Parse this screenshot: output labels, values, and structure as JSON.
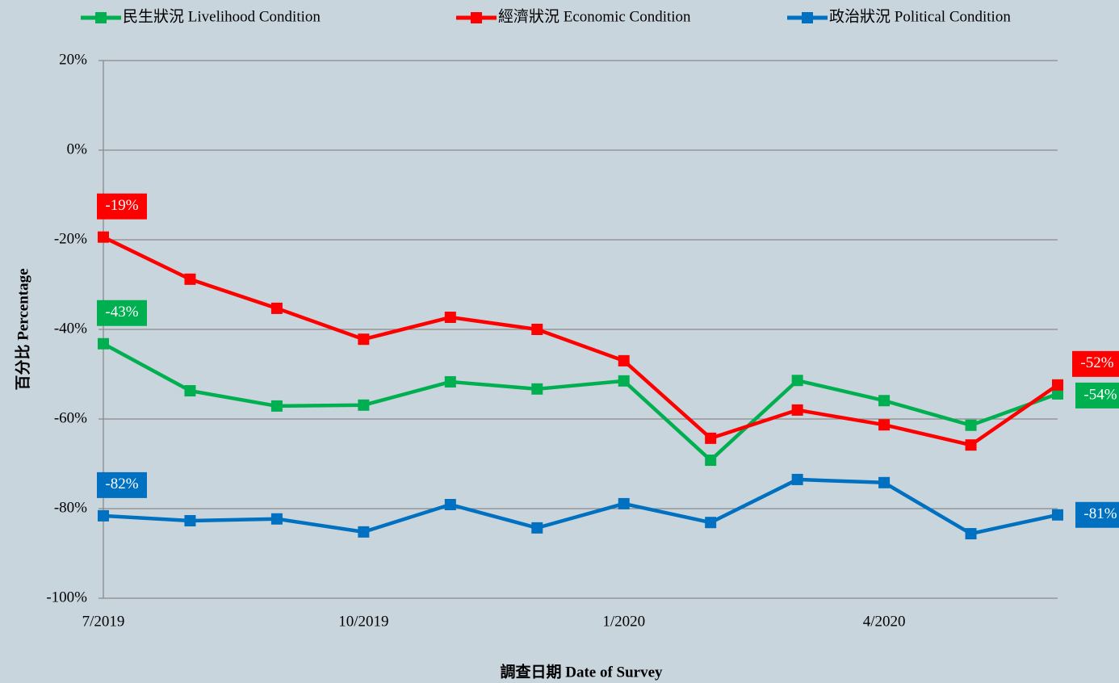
{
  "chart_data": {
    "type": "line",
    "x_label": "調查日期 Date of Survey",
    "y_label": "百分比 Percentage",
    "categories": [
      "7/2019",
      null,
      null,
      "10/2019",
      null,
      null,
      "1/2020",
      null,
      null,
      "4/2020",
      null,
      null
    ],
    "ylim": [
      -100,
      20
    ],
    "yticks": [
      {
        "value": -100,
        "label": "-100%"
      },
      {
        "value": -80,
        "label": "-80%"
      },
      {
        "value": -60,
        "label": "-60%"
      },
      {
        "value": -40,
        "label": "-40%"
      },
      {
        "value": -20,
        "label": "-20%"
      },
      {
        "value": 0,
        "label": "0%"
      },
      {
        "value": 20,
        "label": "20%"
      }
    ],
    "grid": true,
    "legend": "top",
    "series": [
      {
        "name": "民生狀況 Livelihood Condition",
        "color": "#00b050",
        "values": [
          -43.2,
          -53.7,
          -57.1,
          -56.9,
          -51.7,
          -53.3,
          -51.5,
          -69.2,
          -51.4,
          -55.9,
          -61.4,
          -54.4
        ],
        "value_labels": [
          "-43%",
          null,
          null,
          null,
          null,
          null,
          null,
          null,
          null,
          null,
          null,
          "-54%"
        ]
      },
      {
        "name": "經濟狀況 Economic Condition",
        "color": "#ff0000",
        "values": [
          -19.4,
          -28.8,
          -35.3,
          -42.2,
          -37.3,
          -40.0,
          -47.0,
          -64.3,
          -58.0,
          -61.3,
          -65.8,
          -52.4
        ],
        "value_labels": [
          "-19%",
          null,
          null,
          null,
          null,
          null,
          null,
          null,
          null,
          null,
          null,
          "-52%"
        ]
      },
      {
        "name": "政治狀況 Political Condition",
        "color": "#0070c0",
        "values": [
          -81.6,
          -82.7,
          -82.3,
          -85.2,
          -79.1,
          -84.3,
          -78.9,
          -83.1,
          -73.5,
          -74.2,
          -85.6,
          -81.4
        ],
        "value_labels": [
          "-82%",
          null,
          null,
          null,
          null,
          null,
          null,
          null,
          null,
          null,
          null,
          "-81%"
        ]
      }
    ]
  }
}
